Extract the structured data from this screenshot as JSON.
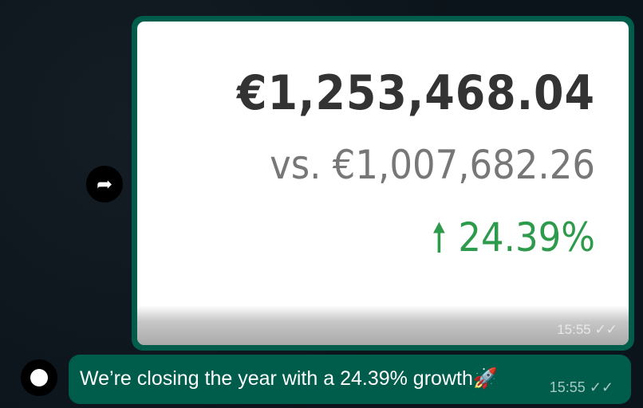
{
  "image_message": {
    "amount": "€1,253,468.04",
    "comparison": "vs. €1,007,682.26",
    "change": "24.39%",
    "change_icon": "arrow-up-icon",
    "time": "15:55",
    "status_icon": "double-check-icon"
  },
  "text_message": {
    "text": "We’re closing the year with a 24.39% growth🚀",
    "time": "15:55",
    "status_icon": "double-check-icon"
  },
  "colors": {
    "bubble": "#005c4b",
    "background": "#0b141a",
    "positive": "#2e9a4c"
  }
}
